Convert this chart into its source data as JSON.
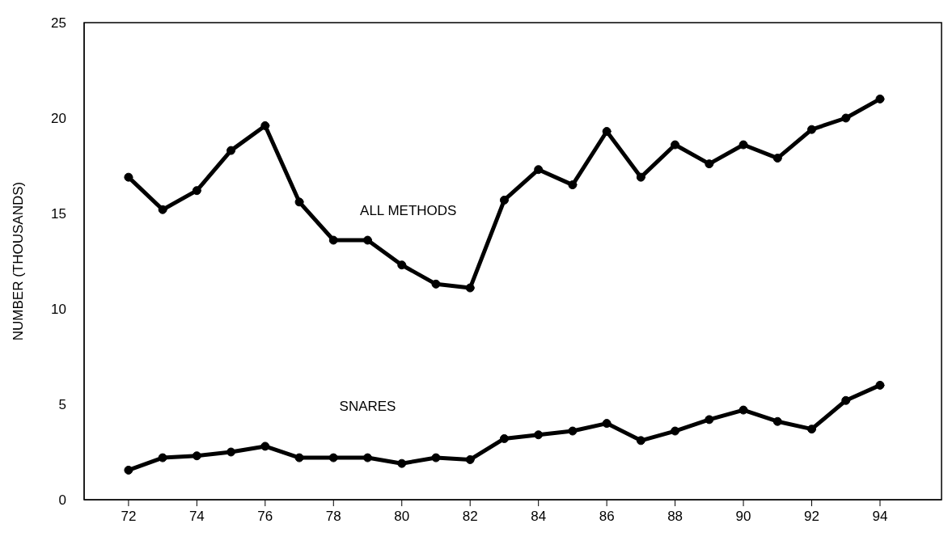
{
  "chart_data": {
    "type": "line",
    "ylabel": "NUMBER (THOUSANDS)",
    "x": [
      72,
      73,
      74,
      75,
      76,
      77,
      78,
      79,
      80,
      81,
      82,
      83,
      84,
      85,
      86,
      87,
      88,
      89,
      90,
      91,
      92,
      93,
      94
    ],
    "series": [
      {
        "name": "ALL METHODS",
        "color": "#000000",
        "values": [
          16.9,
          15.2,
          16.2,
          18.3,
          19.6,
          15.6,
          13.6,
          13.6,
          12.3,
          11.3,
          11.1,
          15.7,
          17.3,
          16.5,
          19.3,
          16.9,
          18.6,
          17.6,
          18.6,
          17.9,
          19.4,
          20.0,
          21.0
        ]
      },
      {
        "name": "SNARES",
        "color": "#000000",
        "values": [
          1.55,
          2.2,
          2.3,
          2.5,
          2.8,
          2.2,
          2.2,
          2.2,
          1.9,
          2.2,
          2.1,
          3.2,
          3.4,
          3.6,
          4.0,
          3.1,
          3.6,
          4.2,
          4.7,
          4.1,
          3.7,
          5.2,
          6.0
        ]
      }
    ],
    "xlim": [
      70.7,
      95.8
    ],
    "xticks": [
      72,
      74,
      76,
      78,
      80,
      82,
      84,
      86,
      88,
      90,
      92,
      94
    ],
    "ylim": [
      0,
      25
    ],
    "yticks": [
      0,
      5,
      10,
      15,
      20,
      25
    ],
    "grid": false,
    "legend": false,
    "marker": "circle",
    "line_style": "solid"
  }
}
